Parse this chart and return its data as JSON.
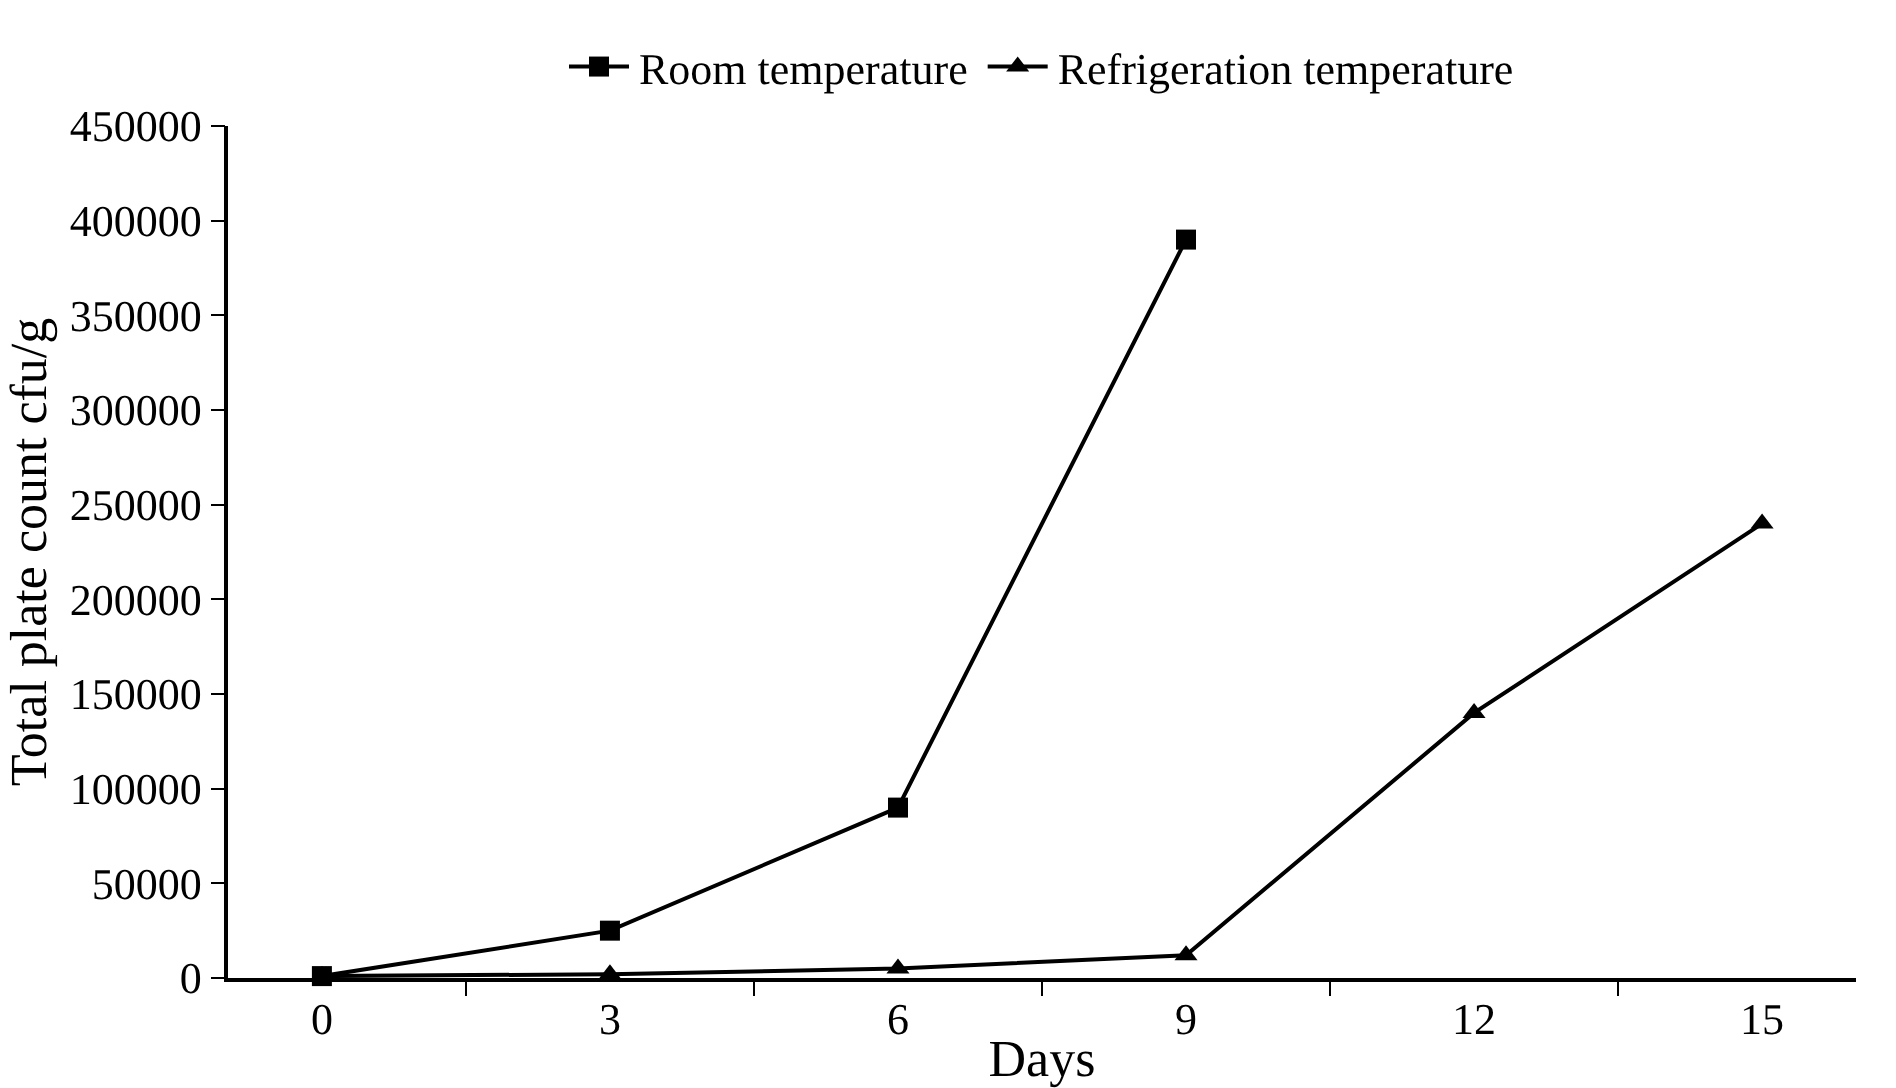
{
  "chart_data": {
    "type": "line",
    "xlabel": "Days",
    "ylabel": "Total plate count cfu/g",
    "categories": [
      "0",
      "3",
      "6",
      "9",
      "12",
      "15"
    ],
    "series": [
      {
        "name": "Room temperature",
        "color": "#000000",
        "marker": "square",
        "values": [
          1000,
          25000,
          90000,
          390000,
          null,
          null
        ]
      },
      {
        "name": "Refrigeration temperature",
        "color": "#000000",
        "marker": "triangle",
        "values": [
          1000,
          2000,
          5000,
          12000,
          140000,
          240000
        ]
      }
    ],
    "ylim": [
      0,
      450000
    ],
    "yticks": [
      0,
      50000,
      100000,
      150000,
      200000,
      250000,
      300000,
      350000,
      400000,
      450000
    ],
    "grid": false,
    "legend": "top",
    "line_style": "solid"
  }
}
